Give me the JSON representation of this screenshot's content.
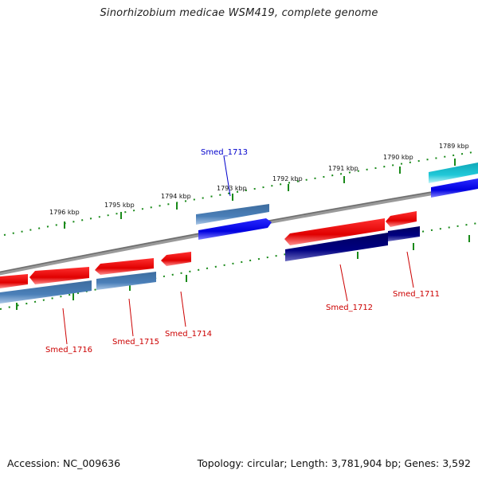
{
  "title": "Sinorhizobium medicae WSM419, complete genome",
  "footer": {
    "accession": "Accession: NC_009636",
    "summary": "Topology: circular; Length: 3,781,904 bp; Genes: 3,592"
  },
  "scale_labels": [
    "1796 kbp",
    "1795 kbp",
    "1794 kbp",
    "1793 kbp",
    "1792 kbp",
    "1791 kbp",
    "1790 kbp",
    "1789 kbp"
  ],
  "gene_labels": [
    {
      "text": "Smed_1713",
      "color": "#0000cc"
    },
    {
      "text": "Smed_1716",
      "color": "#cc0000"
    },
    {
      "text": "Smed_1715",
      "color": "#cc0000"
    },
    {
      "text": "Smed_1714",
      "color": "#cc0000"
    },
    {
      "text": "Smed_1712",
      "color": "#cc0000"
    },
    {
      "text": "Smed_1711",
      "color": "#cc0000"
    }
  ],
  "colors": {
    "backbone": "#8a8a8a",
    "tick": "#1a8a1a",
    "forward_cds": "#0000ee",
    "reverse_cds": "#ee0000",
    "forward_gene": "#4a7fb8",
    "reverse_gene_dark": "#000077",
    "other_feature": "#1ab8c8"
  }
}
